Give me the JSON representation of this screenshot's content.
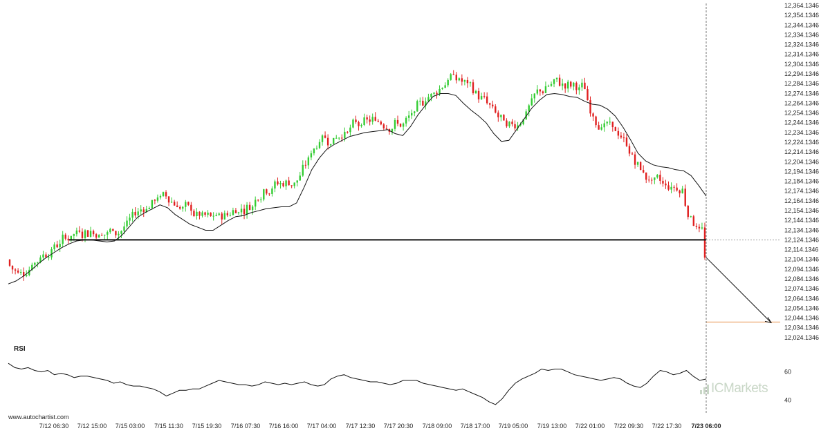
{
  "chart_data": [
    {
      "type": "candlestick",
      "title": "",
      "x_tick_labels": [
        "7/12 06:30",
        "7/12 15:00",
        "7/15 03:00",
        "7/15 11:30",
        "7/15 19:30",
        "7/16 07:30",
        "7/16 16:00",
        "7/17 04:00",
        "7/17 12:30",
        "7/17 20:30",
        "7/18 09:00",
        "7/18 17:00",
        "7/19 05:00",
        "7/19 13:00",
        "7/22 01:00",
        "7/22 09:30",
        "7/22 17:30",
        "7/23 06:00"
      ],
      "current_x_label": "7/23 06:00",
      "y_tick_labels": [
        "12,364.1346",
        "12,354.1346",
        "12,344.1346",
        "12,334.1346",
        "12,324.1346",
        "12,314.1346",
        "12,304.1346",
        "12,294.1346",
        "12,284.1346",
        "12,274.1346",
        "12,264.1346",
        "12,254.1346",
        "12,244.1346",
        "12,234.1346",
        "12,224.1346",
        "12,214.1346",
        "12,204.1346",
        "12,194.1346",
        "12,184.1346",
        "12,174.1346",
        "12,164.1346",
        "12,154.1346",
        "12,144.1346",
        "12,134.1346",
        "12,124.1346",
        "12,114.1346",
        "12,104.1346",
        "12,094.1346",
        "12,084.1346",
        "12,074.1346",
        "12,064.1346",
        "12,054.1346",
        "12,044.1346",
        "12,034.1346",
        "12,024.1346"
      ],
      "ylim": [
        12020,
        12368
      ],
      "support_level": 12124.1346,
      "target_level": 12040,
      "arrow": {
        "from": 12106,
        "to": 12040,
        "direction": "down"
      },
      "moving_average": [
        12079,
        12082,
        12087,
        12093,
        12100,
        12106,
        12111,
        12116,
        12120,
        12123,
        12124,
        12124,
        12123,
        12122,
        12123,
        12129,
        12138,
        12147,
        12152,
        12156,
        12160,
        12157,
        12150,
        12145,
        12140,
        12137,
        12134,
        12134,
        12139,
        12144,
        12148,
        12149,
        12152,
        12154,
        12156,
        12157,
        12158,
        12158,
        12162,
        12178,
        12196,
        12208,
        12217,
        12222,
        12226,
        12230,
        12232,
        12234,
        12235,
        12236,
        12237,
        12233,
        12231,
        12240,
        12252,
        12262,
        12271,
        12274,
        12274,
        12272,
        12264,
        12257,
        12251,
        12244,
        12233,
        12225,
        12226,
        12237,
        12248,
        12259,
        12267,
        12273,
        12274,
        12273,
        12271,
        12270,
        12266,
        12263,
        12262,
        12258,
        12251,
        12240,
        12227,
        12213,
        12205,
        12201,
        12199,
        12198,
        12196,
        12195,
        12190,
        12180,
        12169
      ],
      "colors": {
        "up": "#33cc33",
        "down": "#e02020",
        "ma": "#111111",
        "support": "#111111",
        "target": "#e8914a",
        "rsi": "#111111"
      }
    },
    {
      "type": "line",
      "title": "RSI",
      "y_tick_labels": [
        "60",
        "40"
      ],
      "ylim": [
        35,
        70
      ],
      "values": [
        66,
        63,
        62,
        63,
        61,
        60,
        61,
        58,
        59,
        58,
        56,
        57,
        57,
        56,
        55,
        54,
        52,
        53,
        51,
        50,
        50,
        49,
        48,
        46,
        43,
        45,
        47,
        47,
        48,
        48,
        50,
        52,
        54,
        53,
        52,
        51,
        51,
        50,
        51,
        53,
        52,
        51,
        52,
        51,
        52,
        53,
        51,
        50,
        51,
        55,
        57,
        58,
        56,
        55,
        54,
        53,
        53,
        52,
        51,
        52,
        54,
        54,
        54,
        52,
        51,
        50,
        49,
        48,
        47,
        48,
        46,
        44,
        42,
        39,
        37,
        41,
        47,
        52,
        55,
        57,
        59,
        62,
        61,
        62,
        62,
        60,
        58,
        57,
        56,
        55,
        54,
        55,
        56,
        55,
        52,
        50,
        49,
        52,
        57,
        61,
        60,
        58,
        59,
        61,
        57,
        54,
        55
      ]
    }
  ],
  "footer": {
    "source": "www.autochartist.com"
  },
  "brand": {
    "text": "ICMarkets"
  }
}
